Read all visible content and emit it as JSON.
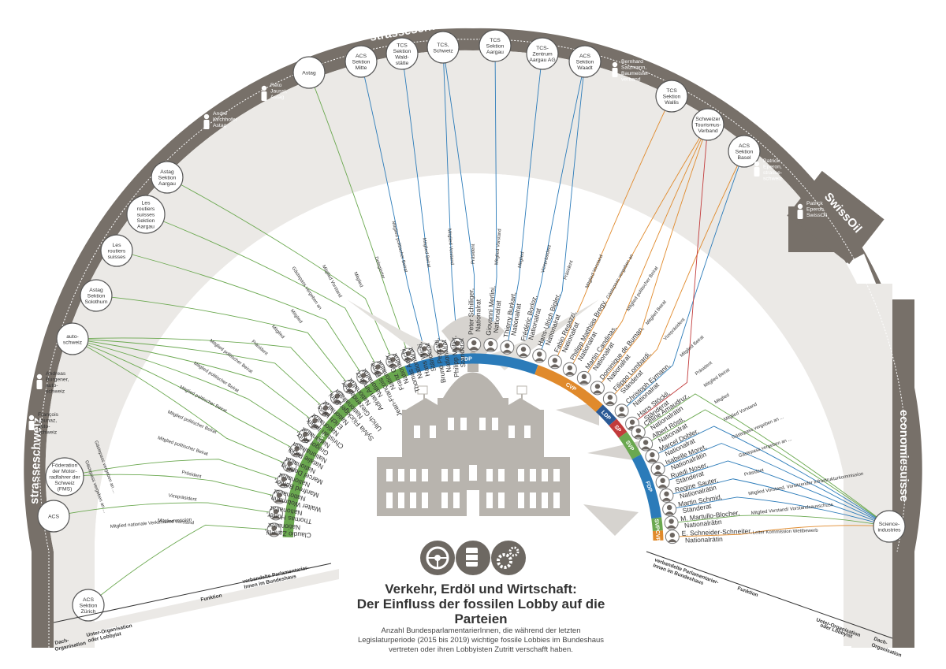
{
  "title": [
    "Verkehr, Erdöl und Wirtschaft:",
    "Der Einfluss der fossilen Lobby auf die Parteien"
  ],
  "subtitle": [
    "Anzahl BundesparlamentarierInnen, die während der letzten",
    "Legislaturperiode (2015 bis 2019) wichtige fossile Lobbies im Bundeshaus",
    "vertreten oder ihren Lobbyisten Zutritt verschafft haben."
  ],
  "colors": {
    "svp": "#6aa84f",
    "fdp": "#2b7bb9",
    "cvp": "#e08a2c",
    "ldp": "#2b5a96",
    "sp": "#c23b3b",
    "ring": "#777069",
    "building": "#b8b4ae"
  },
  "arc_labels": {
    "strasse_top": "strasseschweiz",
    "strasse_topright": "strasseschweiz",
    "strasse_left": "strasseschweiz",
    "strasse_leftbottom": "strasseschweiz",
    "swissoil": "SwissOil",
    "economiesuisse": "economiesuisse"
  },
  "orgs": [
    {
      "lines": [
        "ACS",
        "Sektion",
        "Zürich"
      ]
    },
    {
      "lines": [
        "ACS"
      ]
    },
    {
      "lines": [
        "Föderation",
        "der Motor-",
        "radfahrer der",
        "Schweiz",
        "(FMS)"
      ]
    },
    {
      "lines": [
        "auto-",
        "schweiz"
      ]
    },
    {
      "lines": [
        "Astag",
        "Sektion",
        "Solothurn"
      ]
    },
    {
      "lines": [
        "Les",
        "routiers",
        "suisses"
      ]
    },
    {
      "lines": [
        "Les",
        "routiers",
        "suisses",
        "Sektion",
        "Aargau"
      ]
    },
    {
      "lines": [
        "Astag",
        "Sektion",
        "Aargau"
      ]
    },
    {
      "lines": [
        "Astag"
      ]
    },
    {
      "lines": [
        "ACS",
        "Sektion",
        "Mitte"
      ]
    },
    {
      "lines": [
        "TCS",
        "Sektion",
        "Wald-",
        "stätte"
      ]
    },
    {
      "lines": [
        "TCS,",
        "Schweiz"
      ]
    },
    {
      "lines": [
        "TCS",
        "Sektion",
        "Aargau"
      ]
    },
    {
      "lines": [
        "TCS-",
        "Zentrum",
        "Aargau AG"
      ]
    },
    {
      "lines": [
        "ACS",
        "Sektion",
        "Waadt"
      ]
    },
    {
      "lines": [
        "TCS",
        "Sektion",
        "Wallis"
      ]
    },
    {
      "lines": [
        "Schweizer",
        "Tourismus-",
        "Verband"
      ]
    },
    {
      "lines": [
        "ACS",
        "Sektion",
        "Basel"
      ]
    },
    {
      "lines": [
        "Science-",
        "industries"
      ]
    }
  ],
  "persons": [
    {
      "lines": [
        "André",
        "Kirchhofer",
        "Astag"
      ]
    },
    {
      "lines": [
        "Reto",
        "Jaussi,",
        "Astag"
      ]
    },
    {
      "lines": [
        "Bernhard",
        "Salzmann,",
        "Baumeister-",
        "verband"
      ]
    },
    {
      "lines": [
        "Patrick",
        "Eperon,",
        "strasse-",
        "schweiz"
      ]
    },
    {
      "lines": [
        "Patrick",
        "Eperon,",
        "SwissOil"
      ]
    },
    {
      "lines": [
        "Andreas",
        "Burgener,",
        "auto-",
        "schweiz"
      ]
    },
    {
      "lines": [
        "François",
        "Launaz,",
        "auto-",
        "schweiz"
      ]
    }
  ],
  "parliamentarians": [
    {
      "name": "Claudio Zanetti,",
      "role": "Nationalrat",
      "party": "svp",
      "func": "Mitglied Vorstand"
    },
    {
      "name": "Thomas Hurter,",
      "role": "Nationalrat",
      "party": "svp",
      "func": "Vizepräsident"
    },
    {
      "name": "Walter Wobmann,",
      "role": "Nationalrat",
      "party": "svp",
      "func": "Präsident"
    },
    {
      "name": "Manfred Bühler,",
      "role": "Nationalrat",
      "party": "svp",
      "func": "Mitglied politischer Beirat"
    },
    {
      "name": "Marcel Dettling,",
      "role": "Nationalrat",
      "party": "svp",
      "func": "Mitglied politischer Beirat"
    },
    {
      "name": "Natalie Rickli,",
      "role": "Nationalrätin",
      "party": "svp",
      "func": "Mitglied politischer Beirat"
    },
    {
      "name": "Gregor Rutz,",
      "role": "Nationalrat",
      "party": "svp",
      "func": "Mitglied politischer Beirat"
    },
    {
      "name": "Christian Imark,",
      "role": "Nationalrat",
      "party": "svp",
      "func": "Mitglied politischer Beirat"
    },
    {
      "name": "Erich Hess,",
      "role": "Nationalrat",
      "party": "svp",
      "func": "Präsident"
    },
    {
      "name": "Sylvia Flückiger-Bäni,",
      "role": "Nationalrätin",
      "party": "svp",
      "func": "Mitglied"
    },
    {
      "name": "Ulrich Giezendanner,",
      "role": "Nationalrat",
      "party": "svp",
      "func": "Mitglied"
    },
    {
      "name": "Adrian Amstutz,",
      "role": "Nationalrat",
      "party": "svp",
      "func": "Gästepass vergeben an"
    },
    {
      "name": "Jean-François Rime,",
      "role": "Nationalrat",
      "party": "svp",
      "func": "Mitglied Vorstand"
    },
    {
      "name": "Franz Grüter,",
      "role": "Nationalrat",
      "party": "svp",
      "func": "Mitglied"
    },
    {
      "name": "Thomas Aeschi,",
      "role": "Nationalrat",
      "party": "svp",
      "func": "Delegierter"
    },
    {
      "name": "Hans Wicki,",
      "role": "Ständerat",
      "party": "fdp",
      "func": "Mitglied politischer Beirat"
    },
    {
      "name": "Bruno Pezzatti,",
      "role": "Nationalrat",
      "party": "fdp",
      "func": "Mitglied Beirat"
    },
    {
      "name": "Philipp Müller,",
      "role": "Ständerat",
      "party": "fdp",
      "func": "Mitglied Vorstand"
    },
    {
      "name": "Peter Schilliger,",
      "role": "Nationalrat",
      "party": "fdp",
      "func": "Präsident"
    },
    {
      "name": "Giovanni Merlini,",
      "role": "Nationalrat",
      "party": "fdp",
      "func": "Mitglied Vorstand"
    },
    {
      "name": "Thierry Burkart,",
      "role": "Nationalrat",
      "party": "fdp",
      "func": "Mitglied"
    },
    {
      "name": "Frédéric Borloz,",
      "role": "Nationalrat",
      "party": "fdp",
      "func": "Vizepräsident"
    },
    {
      "name": "Hans-Ulrich Bigler,",
      "role": "Nationalrat",
      "party": "fdp",
      "func": "Präsident"
    },
    {
      "name": "Fabio Regazzi,",
      "role": "Nationalrat",
      "party": "cvp",
      "func": "Mitglied Vorstand"
    },
    {
      "name": "Philipp Matthias Bregy,",
      "role": "Nationalrat",
      "party": "cvp",
      "func": "Gästepass vergeben an"
    },
    {
      "name": "Martin Candinas,",
      "role": "Nationalrat",
      "party": "cvp",
      "func": "Mitglied politischer Beirat"
    },
    {
      "name": "Dominique de Buman,",
      "role": "Nationalrat",
      "party": "cvp",
      "func": "Mitglied Beirat"
    },
    {
      "name": "Filippo Lombardi,",
      "role": "Ständerat",
      "party": "cvp",
      "func": "Vizepräsident"
    },
    {
      "name": "Christoph Eymann,",
      "role": "Nationalrat",
      "party": "ldp",
      "func": "Mitglied Beirat"
    },
    {
      "name": "Hans Stöckli,",
      "role": "Ständerat",
      "party": "sp",
      "func": "Präsident"
    },
    {
      "name": "Céline Amaudruz,",
      "role": "Nationalrätin",
      "party": "svp",
      "func": "Mitglied Beirat"
    },
    {
      "name": "Albert Rösti,",
      "role": "Nationalrat",
      "party": "svp",
      "func": "Mitglied"
    },
    {
      "name": "Marcel Dobler,",
      "role": "Nationalrat",
      "party": "fdp",
      "func": "Mitglied Vorstand"
    },
    {
      "name": "Isabelle Moret,",
      "role": "Nationalrätin",
      "party": "fdp",
      "func": "Gästepass vergeben an ..."
    },
    {
      "name": "Ruedi Noser,",
      "role": "Ständerat",
      "party": "fdp",
      "func": "Gästepass vergeben an ..."
    },
    {
      "name": "Regine Sauter,",
      "role": "Nationalrätin",
      "party": "fdp",
      "func": "Präsident"
    },
    {
      "name": "Martin Schmid,",
      "role": "Ständerat",
      "party": "fdp",
      "func": "Mitglied Vorstand, Vorsitzender Infrastrukturkommission"
    },
    {
      "name": "M. Martullo-Blocher,",
      "role": "Nationalrätin",
      "party": "svp",
      "func": "Mitglied Vorstand/ Vorstandsausschuss"
    },
    {
      "name": "E. Schneider-Schneiter,",
      "role": "Nationalrätin",
      "party": "cvp",
      "func": "Leiter Kommission Wettbewerb"
    }
  ],
  "party_labels": {
    "svp_left": "SVP",
    "fdp_top": "FDP",
    "cvp_top": "CVP",
    "ldp": "LDP",
    "sp": "SP",
    "svp_right": "SVP",
    "fdp_right": "FDP",
    "svp_right2": "SVP",
    "cvp_right": "CVP"
  },
  "right_functions": [
    "Mitglied Vorstand, Vorsitzender",
    "Infrastrukturkommission",
    "Mitglied Vorstand/",
    "Vorstandsausschuss",
    "Leiter Kommission",
    "Wettbewerb",
    "Mitglied",
    "Geschäftsführerausschuss",
    "Mitglied, Vertreter Gasindustrie",
    "Mitglied Vorstand/Vorsitzende",
    "wirtschaftspol. Ausschuss",
    "Mitglied Vorstand",
    "Mitglied Vorstand"
  ],
  "left_extra_functions": [
    "Mitglied nationale Verkehrskommission",
    "Gästepass vergeben an ...",
    "Gästepass vergeben an ..."
  ],
  "legend_left": {
    "dach": "Dach-\nOrganisation",
    "unter": "Unter-Organisation\noder Lobbyist",
    "funktion": "Funktion",
    "verb": "verbandelte Parlamentarier-\nInnen im Bundeshaus"
  },
  "legend_right": {
    "dach": "Dach-\nOrganisation",
    "unter": "Unter-Organisation\noder Lobbyist",
    "funktion": "Funktion",
    "verb": "verbandelte Parlamentarier-\nInnen im Bundeshaus"
  },
  "icon_names": [
    "steering-wheel-icon",
    "oil-barrel-icon",
    "gears-icon"
  ]
}
